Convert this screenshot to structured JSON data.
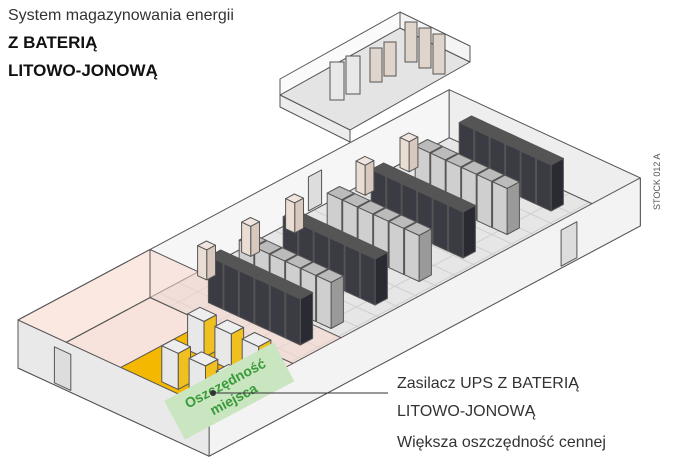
{
  "header": {
    "title": "System magazynowania energii",
    "subtitle_lines": [
      "Z BATERIĄ",
      "LITOWO-JONOWĄ"
    ]
  },
  "badge": {
    "lines": [
      "Oszczędność",
      "miejsca"
    ]
  },
  "callout": {
    "title_lines": [
      "Zasilacz UPS Z BATERIĄ",
      "LITOWO-JONOWĄ"
    ],
    "description": "Większa oszczędność cennej"
  },
  "stock_code": "STOCK 012 A"
}
